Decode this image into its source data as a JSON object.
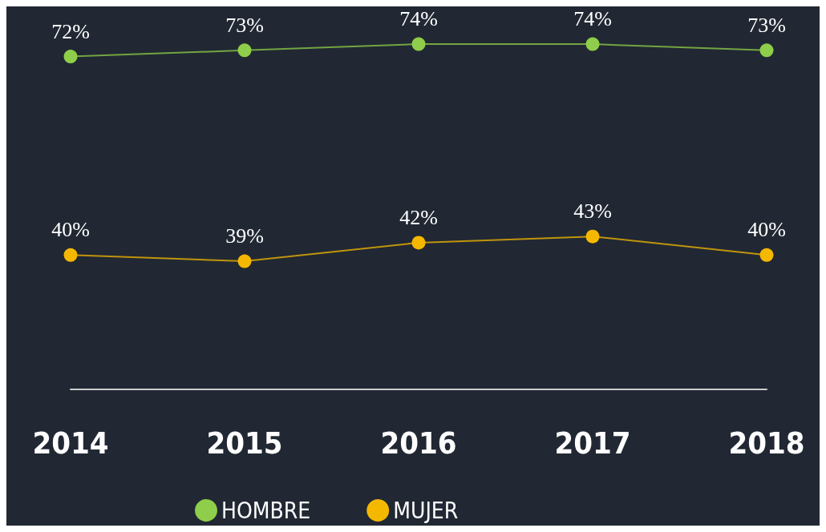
{
  "chart_data": {
    "type": "line",
    "categories": [
      "2014",
      "2015",
      "2016",
      "2017",
      "2018"
    ],
    "marker": "circle",
    "legend": "bottom",
    "series": [
      {
        "name": "HOMBRE",
        "color": "#8fce4a",
        "values": [
          72,
          73,
          74,
          74,
          73
        ],
        "value_labels": [
          "72%",
          "73%",
          "74%",
          "74%",
          "73%"
        ]
      },
      {
        "name": "MUJER",
        "color": "#f5b800",
        "values": [
          40,
          39,
          42,
          43,
          40
        ],
        "value_labels": [
          "40%",
          "39%",
          "42%",
          "43%",
          "40%"
        ]
      }
    ]
  }
}
